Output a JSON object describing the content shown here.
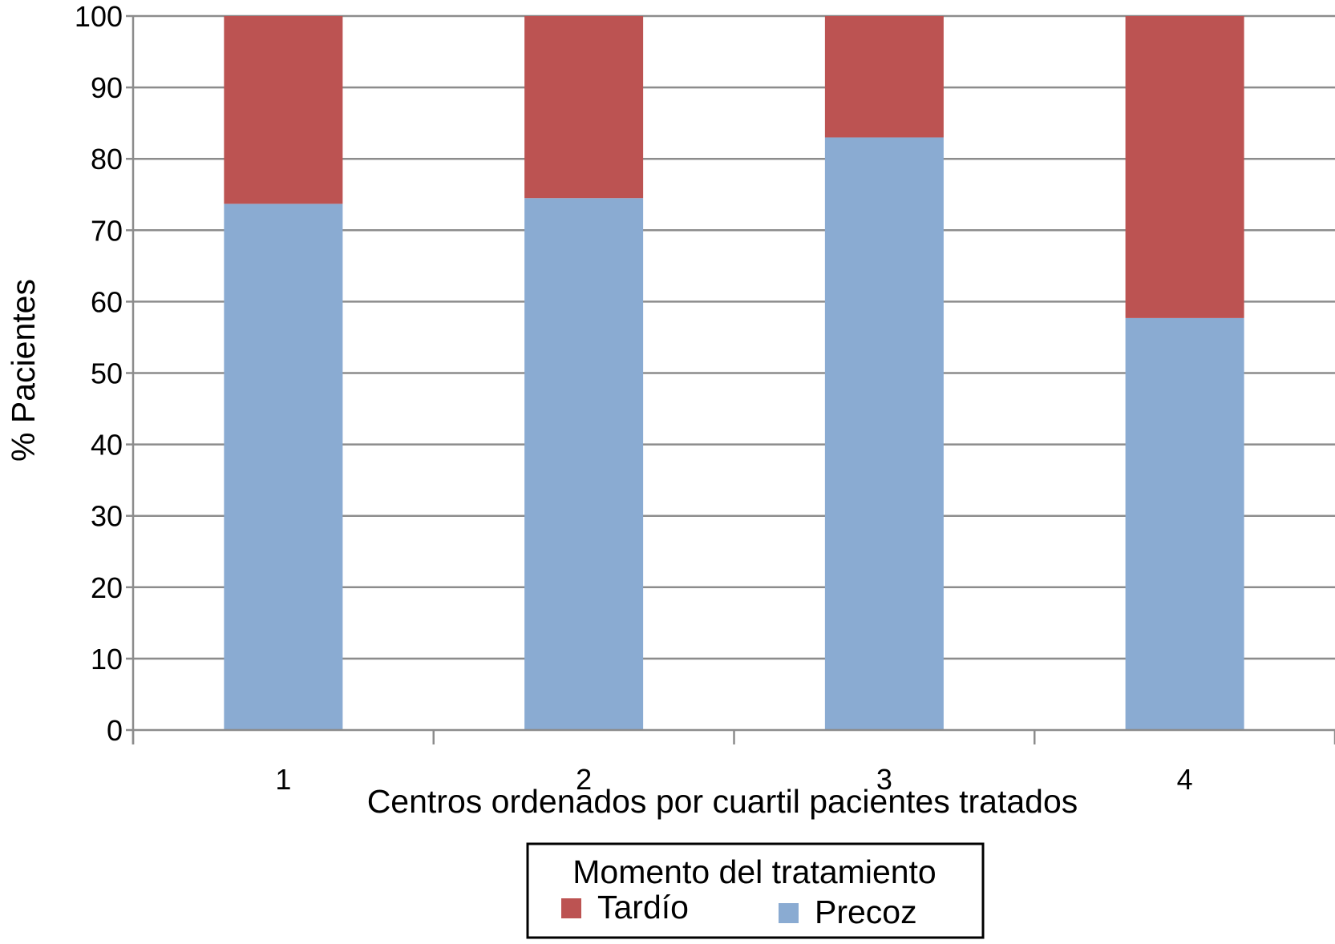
{
  "chart_data": {
    "type": "bar",
    "stacked": true,
    "categories": [
      "1",
      "2",
      "3",
      "4"
    ],
    "series": [
      {
        "name": "Precoz",
        "values": [
          73.7,
          74.5,
          83.0,
          57.7
        ],
        "color": "#8aabd2"
      },
      {
        "name": "Tardío",
        "values": [
          26.3,
          25.5,
          17.0,
          42.3
        ],
        "color": "#bc5352"
      }
    ],
    "xlabel": "Centros ordenados por cuartil pacientes tratados",
    "ylabel": "% Pacientes",
    "ylim": [
      0,
      100
    ],
    "yticks": [
      "0",
      "10",
      "20",
      "30",
      "40",
      "50",
      "60",
      "70",
      "80",
      "90",
      "100"
    ],
    "grid": true,
    "legend": {
      "title": "Momento del tratamiento",
      "position": "bottom-center",
      "entries": [
        "Tardío",
        "Precoz"
      ]
    },
    "colors": {
      "gridline": "#8c8c8c",
      "axis": "#8c8c8c"
    }
  }
}
